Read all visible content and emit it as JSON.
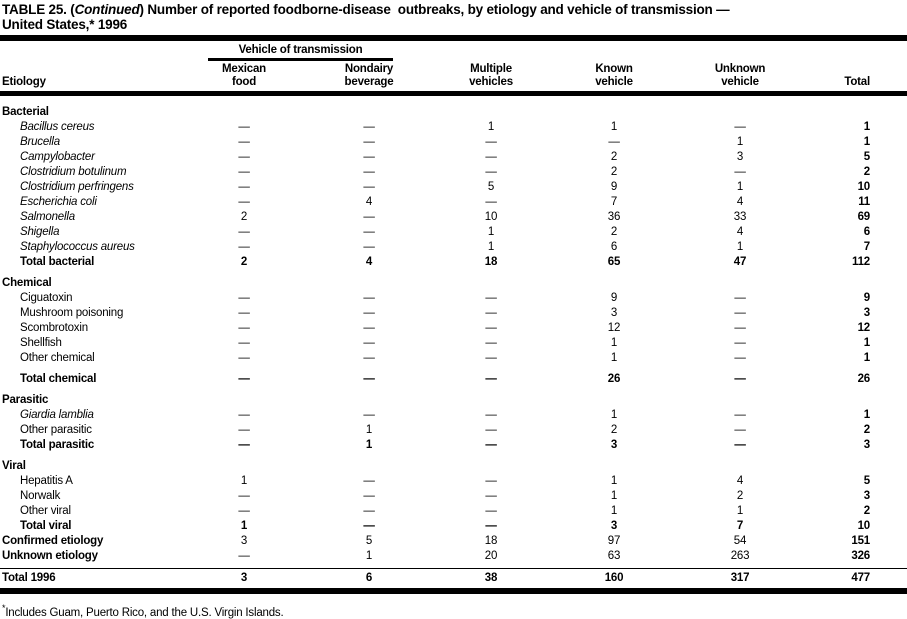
{
  "title": {
    "line1_lead": "TABLE 25. (",
    "line1_continued": "Continued",
    "line1_tail": ") Number of reported foodborne-disease  outbreaks, by etiology and vehicle of transmission —",
    "line2": "United States,* 1996"
  },
  "header": {
    "etiology_label": "Etiology",
    "spanner_label": "Vehicle of transmission",
    "col1_line1": "Mexican",
    "col1_line2": "food",
    "col2_line1": "Nondairy",
    "col2_line2": "beverage",
    "col3_line1": "Multiple",
    "col3_line2": "vehicles",
    "col4_line1": "Known",
    "col4_line2": "vehicle",
    "col5_line1": "Unknown",
    "col5_line2": "vehicle",
    "col6_line2": "Total"
  },
  "table": {
    "rows": [
      {
        "label": "Bacterial",
        "type": "section"
      },
      {
        "label": "Bacillus cereus",
        "type": "item",
        "italic": true,
        "values": [
          "—",
          "—",
          "1",
          "1",
          "—",
          "1"
        ]
      },
      {
        "label": "Brucella",
        "type": "item",
        "italic": true,
        "values": [
          "—",
          "—",
          "—",
          "—",
          "1",
          "1"
        ]
      },
      {
        "label": "Campylobacter",
        "type": "item",
        "italic": true,
        "values": [
          "—",
          "—",
          "—",
          "2",
          "3",
          "5"
        ]
      },
      {
        "label": "Clostridium botulinum",
        "type": "item",
        "italic": true,
        "values": [
          "—",
          "—",
          "—",
          "2",
          "—",
          "2"
        ]
      },
      {
        "label": "Clostridium perfringens",
        "type": "item",
        "italic": true,
        "values": [
          "—",
          "—",
          "5",
          "9",
          "1",
          "10"
        ]
      },
      {
        "label": "Escherichia coli",
        "type": "item",
        "italic": true,
        "values": [
          "—",
          "4",
          "—",
          "7",
          "4",
          "11"
        ]
      },
      {
        "label": "Salmonella",
        "type": "item",
        "italic": true,
        "values": [
          "2",
          "—",
          "10",
          "36",
          "33",
          "69"
        ]
      },
      {
        "label": "Shigella",
        "type": "item",
        "italic": true,
        "values": [
          "—",
          "—",
          "1",
          "2",
          "4",
          "6"
        ]
      },
      {
        "label": "Staphylococcus aureus",
        "type": "item",
        "italic": true,
        "values": [
          "—",
          "—",
          "1",
          "6",
          "1",
          "7"
        ]
      },
      {
        "label": "Total bacterial",
        "type": "subtotal",
        "values": [
          "2",
          "4",
          "18",
          "65",
          "47",
          "112"
        ]
      },
      {
        "label": "Chemical",
        "type": "section"
      },
      {
        "label": "Ciguatoxin",
        "type": "item",
        "values": [
          "—",
          "—",
          "—",
          "9",
          "—",
          "9"
        ]
      },
      {
        "label": "Mushroom poisoning",
        "type": "item",
        "values": [
          "—",
          "—",
          "—",
          "3",
          "—",
          "3"
        ]
      },
      {
        "label": "Scombrotoxin",
        "type": "item",
        "values": [
          "—",
          "—",
          "—",
          "12",
          "—",
          "12"
        ]
      },
      {
        "label": "Shellfish",
        "type": "item",
        "values": [
          "—",
          "—",
          "—",
          "1",
          "—",
          "1"
        ]
      },
      {
        "label": "Other chemical",
        "type": "item",
        "values": [
          "—",
          "—",
          "—",
          "1",
          "—",
          "1"
        ]
      },
      {
        "label": "Total chemical",
        "type": "subtotal",
        "gap": true,
        "values": [
          "—",
          "—",
          "—",
          "26",
          "—",
          "26"
        ]
      },
      {
        "label": "Parasitic",
        "type": "section"
      },
      {
        "label": "Giardia lamblia",
        "type": "item",
        "italic": true,
        "values": [
          "—",
          "—",
          "—",
          "1",
          "—",
          "1"
        ]
      },
      {
        "label": "Other parasitic",
        "type": "item",
        "values": [
          "—",
          "1",
          "—",
          "2",
          "—",
          "2"
        ]
      },
      {
        "label": "Total parasitic",
        "type": "subtotal",
        "values": [
          "—",
          "1",
          "—",
          "3",
          "—",
          "3"
        ]
      },
      {
        "label": "Viral",
        "type": "section"
      },
      {
        "label": "Hepatitis A",
        "type": "item",
        "values": [
          "1",
          "—",
          "—",
          "1",
          "4",
          "5"
        ]
      },
      {
        "label": "Norwalk",
        "type": "item",
        "values": [
          "—",
          "—",
          "—",
          "1",
          "2",
          "3"
        ]
      },
      {
        "label": "Other viral",
        "type": "item",
        "values": [
          "—",
          "—",
          "—",
          "1",
          "1",
          "2"
        ]
      },
      {
        "label": "Total viral",
        "type": "subtotal",
        "values": [
          "1",
          "—",
          "—",
          "3",
          "7",
          "10"
        ]
      },
      {
        "label": "Confirmed etiology",
        "type": "summary",
        "values": [
          "3",
          "5",
          "18",
          "97",
          "54",
          "151"
        ]
      },
      {
        "label": "Unknown etiology",
        "type": "summary",
        "values": [
          "—",
          "1",
          "20",
          "63",
          "263",
          "326"
        ]
      },
      {
        "label": "Total 1996",
        "type": "grandtotal",
        "values": [
          "3",
          "6",
          "38",
          "160",
          "317",
          "477"
        ]
      }
    ]
  },
  "footnote": {
    "marker": "*",
    "text": "Includes Guam, Puerto Rico, and the U.S. Virgin Islands."
  }
}
